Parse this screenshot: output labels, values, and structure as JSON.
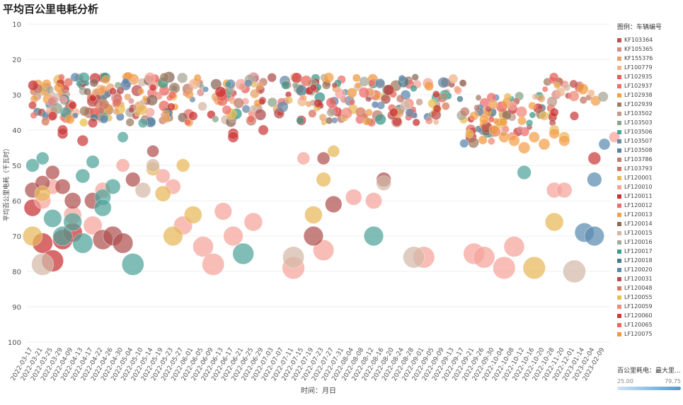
{
  "title": "平均百公里电耗分析",
  "legend": {
    "title": "图例：车辆编号",
    "items": [
      {
        "label": "KF103364",
        "color": "#c0504d"
      },
      {
        "label": "KF105365",
        "color": "#d98a8a"
      },
      {
        "label": "KF155376",
        "color": "#e8a36a"
      },
      {
        "label": "LF100779",
        "color": "#f2b48c"
      },
      {
        "label": "LF102935",
        "color": "#e8605c"
      },
      {
        "label": "LF102937",
        "color": "#f06f6a"
      },
      {
        "label": "LF102938",
        "color": "#f4a04a"
      },
      {
        "label": "LF102939",
        "color": "#a07d60"
      },
      {
        "label": "LF103502",
        "color": "#c09a8a"
      },
      {
        "label": "LF103503",
        "color": "#8aa58a"
      },
      {
        "label": "LF103506",
        "color": "#4fa39a"
      },
      {
        "label": "LF103507",
        "color": "#6a8aa8"
      },
      {
        "label": "LF103508",
        "color": "#5b7fa8"
      },
      {
        "label": "LF103786",
        "color": "#c27a6a"
      },
      {
        "label": "LF103793",
        "color": "#d9705c"
      },
      {
        "label": "LF120001",
        "color": "#e8b85a"
      },
      {
        "label": "LF120010",
        "color": "#f4a49a"
      },
      {
        "label": "LF120011",
        "color": "#c83232"
      },
      {
        "label": "LF120012",
        "color": "#ee6e6e"
      },
      {
        "label": "LF120013",
        "color": "#f0a050"
      },
      {
        "label": "LF120014",
        "color": "#8a6a5a"
      },
      {
        "label": "LF120015",
        "color": "#d4b8a8"
      },
      {
        "label": "LF120016",
        "color": "#a8a898"
      },
      {
        "label": "LF120017",
        "color": "#3d9a8a"
      },
      {
        "label": "LF120018",
        "color": "#4a7a8a"
      },
      {
        "label": "LF120020",
        "color": "#5a8ab0"
      },
      {
        "label": "LF120031",
        "color": "#b05050"
      },
      {
        "label": "LF120048",
        "color": "#d87a5a"
      },
      {
        "label": "LF120055",
        "color": "#e8c050"
      },
      {
        "label": "LF120059",
        "color": "#f08a7a"
      },
      {
        "label": "LF120060",
        "color": "#cc3a3a"
      },
      {
        "label": "LF120065",
        "color": "#e86a5a"
      },
      {
        "label": "LF120075",
        "color": "#f09a40"
      }
    ]
  },
  "size_legend": {
    "title": "百公里耗电：最大里...",
    "min": "25.00",
    "max": "79.75",
    "color": "#4a9bd9"
  },
  "chart_data": {
    "type": "scatter",
    "title": "平均百公里电耗分析",
    "xlabel": "时间：月日",
    "ylabel": "平均百公里电耗（千瓦时）",
    "ylim": [
      10,
      100
    ],
    "y_reversed": true,
    "yticks": [
      10,
      20,
      30,
      40,
      50,
      60,
      70,
      80,
      90,
      100
    ],
    "xticks": [
      "2022-03-17",
      "2022-03-21",
      "2022-03-25",
      "2022-03-29",
      "2022-04-09",
      "2022-04-13",
      "2022-04-17",
      "2022-04-22",
      "2022-04-26",
      "2022-04-30",
      "2022-05-04",
      "2022-05-10",
      "2022-05-14",
      "2022-05-19",
      "2022-05-23",
      "2022-05-27",
      "2022-06-01",
      "2022-06-05",
      "2022-06-09",
      "2022-06-13",
      "2022-06-17",
      "2022-06-21",
      "2022-06-25",
      "2022-06-29",
      "2022-07-03",
      "2022-07-07",
      "2022-07-11",
      "2022-07-15",
      "2022-07-19",
      "2022-07-23",
      "2022-07-27",
      "2022-07-31",
      "2022-08-04",
      "2022-08-08",
      "2022-08-12",
      "2022-08-16",
      "2022-08-20",
      "2022-08-24",
      "2022-08-28",
      "2022-09-01",
      "2022-09-05",
      "2022-09-09",
      "2022-09-13",
      "2022-09-17",
      "2022-09-21",
      "2022-09-26",
      "2022-09-30",
      "2022-10-04",
      "2022-10-08",
      "2022-10-12",
      "2022-10-16",
      "2022-10-20",
      "2022-10-28",
      "2022-11-20",
      "2022-12-01",
      "2023-01-14",
      "2023-02-04",
      "2023-02-09"
    ],
    "series": [
      {
        "name": "LF120011",
        "points": [
          [
            0,
            62
          ],
          [
            1,
            72
          ],
          [
            2,
            77
          ],
          [
            3,
            71
          ],
          [
            4,
            69
          ],
          [
            6,
            31
          ],
          [
            8,
            29
          ],
          [
            3,
            41
          ],
          [
            4,
            33
          ],
          [
            12,
            28
          ],
          [
            16,
            36
          ],
          [
            20,
            41
          ],
          [
            28,
            28
          ],
          [
            36,
            35
          ],
          [
            52,
            35
          ]
        ]
      },
      {
        "name": "LF120010",
        "points": [
          [
            1,
            60
          ],
          [
            2,
            56
          ],
          [
            4,
            64
          ],
          [
            6,
            67
          ],
          [
            7,
            57
          ],
          [
            9,
            50
          ],
          [
            13,
            53
          ],
          [
            14,
            56
          ],
          [
            15,
            67
          ],
          [
            17,
            73
          ],
          [
            18,
            78
          ],
          [
            19,
            63
          ],
          [
            20,
            70
          ],
          [
            22,
            66
          ],
          [
            26,
            79
          ],
          [
            27,
            48
          ],
          [
            29,
            74
          ],
          [
            32,
            59
          ],
          [
            34,
            60
          ],
          [
            39,
            76
          ],
          [
            44,
            75
          ],
          [
            45,
            76
          ],
          [
            47,
            79
          ],
          [
            48,
            73
          ],
          [
            52,
            57
          ],
          [
            53,
            57
          ],
          [
            58,
            42
          ]
        ]
      },
      {
        "name": "LF120031",
        "points": [
          [
            0,
            57
          ],
          [
            1,
            55
          ],
          [
            2,
            52
          ],
          [
            3,
            56
          ],
          [
            4,
            60
          ],
          [
            6,
            60
          ],
          [
            7,
            71
          ],
          [
            8,
            70
          ],
          [
            9,
            72
          ],
          [
            10,
            54
          ],
          [
            12,
            46
          ],
          [
            28,
            70
          ],
          [
            29,
            48
          ],
          [
            30,
            61
          ],
          [
            35,
            54
          ]
        ]
      },
      {
        "name": "LF103506",
        "points": [
          [
            0,
            50
          ],
          [
            1,
            48
          ],
          [
            2,
            65
          ],
          [
            3,
            70
          ],
          [
            4,
            66
          ],
          [
            5,
            53
          ],
          [
            5,
            72
          ],
          [
            6,
            49
          ],
          [
            7,
            59
          ],
          [
            7,
            62
          ],
          [
            8,
            56
          ],
          [
            9,
            42
          ],
          [
            10,
            78
          ],
          [
            11,
            38
          ],
          [
            21,
            75
          ],
          [
            34,
            70
          ],
          [
            49,
            52
          ]
        ]
      },
      {
        "name": "LF120001",
        "points": [
          [
            0,
            70
          ],
          [
            1,
            58
          ],
          [
            12,
            51
          ],
          [
            13,
            58
          ],
          [
            14,
            70
          ],
          [
            15,
            50
          ],
          [
            16,
            64
          ],
          [
            28,
            64
          ],
          [
            29,
            54
          ],
          [
            30,
            46
          ],
          [
            50,
            79
          ],
          [
            52,
            66
          ],
          [
            51,
            36
          ],
          [
            52,
            40
          ],
          [
            53,
            42
          ]
        ]
      },
      {
        "name": "LF120015",
        "points": [
          [
            1,
            78
          ],
          [
            11,
            57
          ],
          [
            12,
            50
          ],
          [
            26,
            76
          ],
          [
            35,
            55
          ],
          [
            38,
            76
          ],
          [
            54,
            80
          ]
        ]
      },
      {
        "name": "LF120020",
        "points": [
          [
            55,
            69
          ],
          [
            56,
            70
          ],
          [
            57,
            44
          ],
          [
            56,
            54
          ]
        ]
      },
      {
        "name": "LF120060",
        "points": [
          [
            0,
            33
          ],
          [
            2,
            36
          ],
          [
            3,
            40
          ],
          [
            5,
            43
          ],
          [
            6,
            38
          ],
          [
            20,
            42
          ],
          [
            23,
            40
          ],
          [
            54,
            36
          ],
          [
            56,
            48
          ]
        ]
      },
      {
        "name": "LF102938",
        "points": [
          [
            45,
            37
          ],
          [
            46,
            40
          ],
          [
            47,
            42
          ],
          [
            48,
            43
          ],
          [
            49,
            45
          ],
          [
            50,
            42
          ],
          [
            51,
            44
          ],
          [
            52,
            41
          ],
          [
            53,
            43
          ],
          [
            44,
            36
          ]
        ]
      }
    ],
    "cluster_band": {
      "y_range": [
        25,
        38
      ]
    }
  },
  "xaxis_label": "时间：月日",
  "yaxis_label": "平均百公里电耗（千瓦时）"
}
